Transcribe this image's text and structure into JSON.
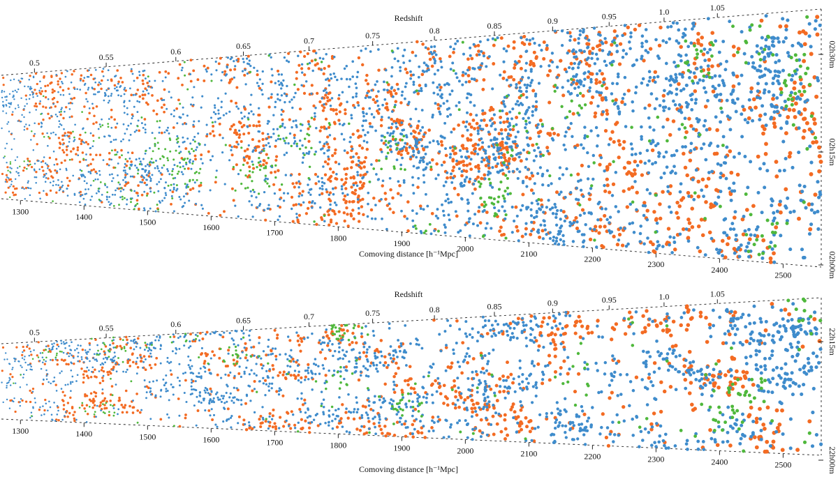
{
  "chart_data": [
    {
      "type": "scatter",
      "redshift_label": "Redshift",
      "xlabel": "Comoving distance [h⁻¹Mpc]",
      "redshift_ticks": [
        "0.5",
        "0.55",
        "0.6",
        "0.65",
        "0.7",
        "0.75",
        "0.8",
        "0.85",
        "0.9",
        "0.95",
        "1.0",
        "1.05"
      ],
      "redshift_values": [
        0.5,
        0.55,
        0.6,
        0.65,
        0.7,
        0.75,
        0.8,
        0.85,
        0.9,
        0.95,
        1.0,
        1.05
      ],
      "distance_ticks": [
        "1300",
        "1400",
        "1500",
        "1600",
        "1700",
        "1800",
        "1900",
        "2000",
        "2100",
        "2200",
        "2300",
        "2400",
        "2500"
      ],
      "distance_values": [
        1300,
        1400,
        1500,
        1600,
        1700,
        1800,
        1900,
        2000,
        2100,
        2200,
        2300,
        2400,
        2500
      ],
      "xlim": [
        1270,
        2560
      ],
      "ra_labels": [
        "02h30m",
        "02h15m",
        "02h00m"
      ],
      "series": [
        {
          "color": "#f36b23",
          "seed": 11,
          "count": 1500
        },
        {
          "color": "#3f8ccc",
          "seed": 23,
          "count": 2500
        },
        {
          "color": "#4fb83c",
          "seed": 37,
          "count": 420
        }
      ]
    },
    {
      "type": "scatter",
      "redshift_label": "Redshift",
      "xlabel": "Comoving distance [h⁻¹Mpc]",
      "redshift_ticks": [
        "0.5",
        "0.55",
        "0.6",
        "0.65",
        "0.7",
        "0.75",
        "0.8",
        "0.85",
        "0.9",
        "0.95",
        "1.0",
        "1.05"
      ],
      "redshift_values": [
        0.5,
        0.55,
        0.6,
        0.65,
        0.7,
        0.75,
        0.8,
        0.85,
        0.9,
        0.95,
        1.0,
        1.05
      ],
      "distance_ticks": [
        "1300",
        "1400",
        "1500",
        "1600",
        "1700",
        "1800",
        "1900",
        "2000",
        "2100",
        "2200",
        "2300",
        "2400",
        "2500"
      ],
      "distance_values": [
        1300,
        1400,
        1500,
        1600,
        1700,
        1800,
        1900,
        2000,
        2100,
        2200,
        2300,
        2400,
        2500
      ],
      "xlim": [
        1270,
        2560
      ],
      "ra_labels": [
        "22h15m",
        "22h00m"
      ],
      "series": [
        {
          "color": "#f36b23",
          "seed": 51,
          "count": 900
        },
        {
          "color": "#3f8ccc",
          "seed": 63,
          "count": 1600
        },
        {
          "color": "#4fb83c",
          "seed": 77,
          "count": 260
        }
      ]
    }
  ]
}
